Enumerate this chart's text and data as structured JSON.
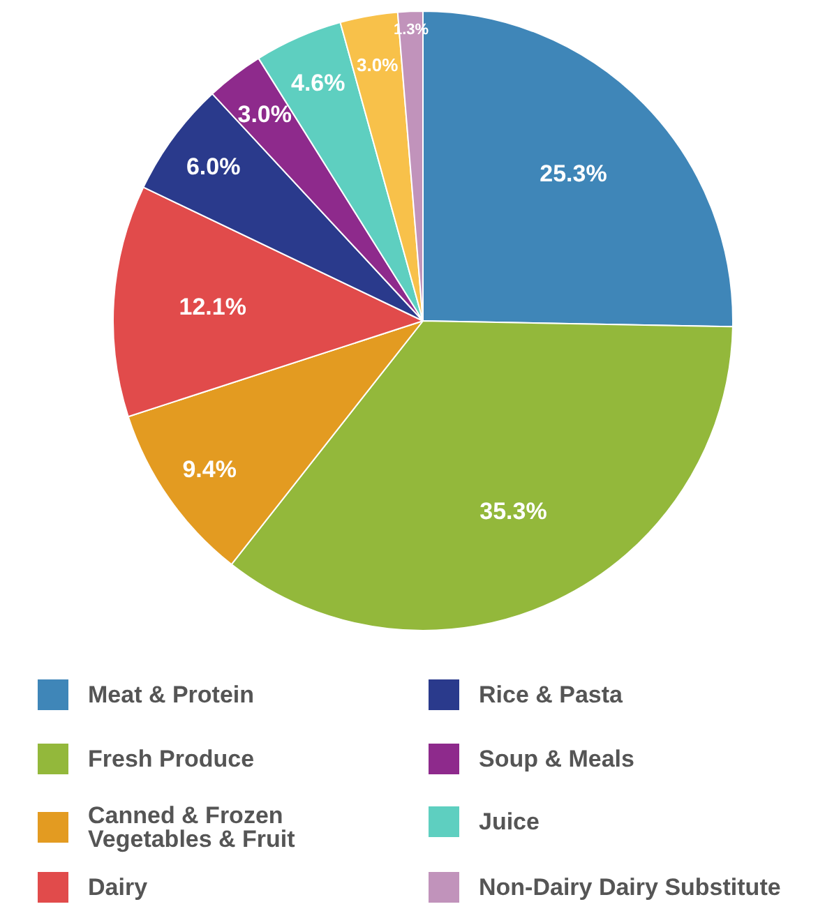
{
  "chart_data": {
    "type": "pie",
    "categories": [
      "Meat & Protein",
      "Fresh Produce",
      "Canned & Frozen Vegetables & Fruit",
      "Dairy",
      "Rice & Pasta",
      "Soup & Meals",
      "Juice",
      null,
      "Non-Dairy Dairy Substitute"
    ],
    "values": [
      25.3,
      35.3,
      9.4,
      12.1,
      6.0,
      3.0,
      4.6,
      3.0,
      1.3
    ],
    "colors": [
      "#3f86b8",
      "#93b83b",
      "#e39b21",
      "#e14b4b",
      "#2a3a8c",
      "#8e2a8c",
      "#5ecfc0",
      "#f8c14a",
      "#c193bb"
    ],
    "value_labels": [
      "25.3%",
      "35.3%",
      "9.4%",
      "12.1%",
      "6.0%",
      "3.0%",
      "4.6%",
      "3.0%",
      "1.3%"
    ],
    "legend": "bottom"
  }
}
